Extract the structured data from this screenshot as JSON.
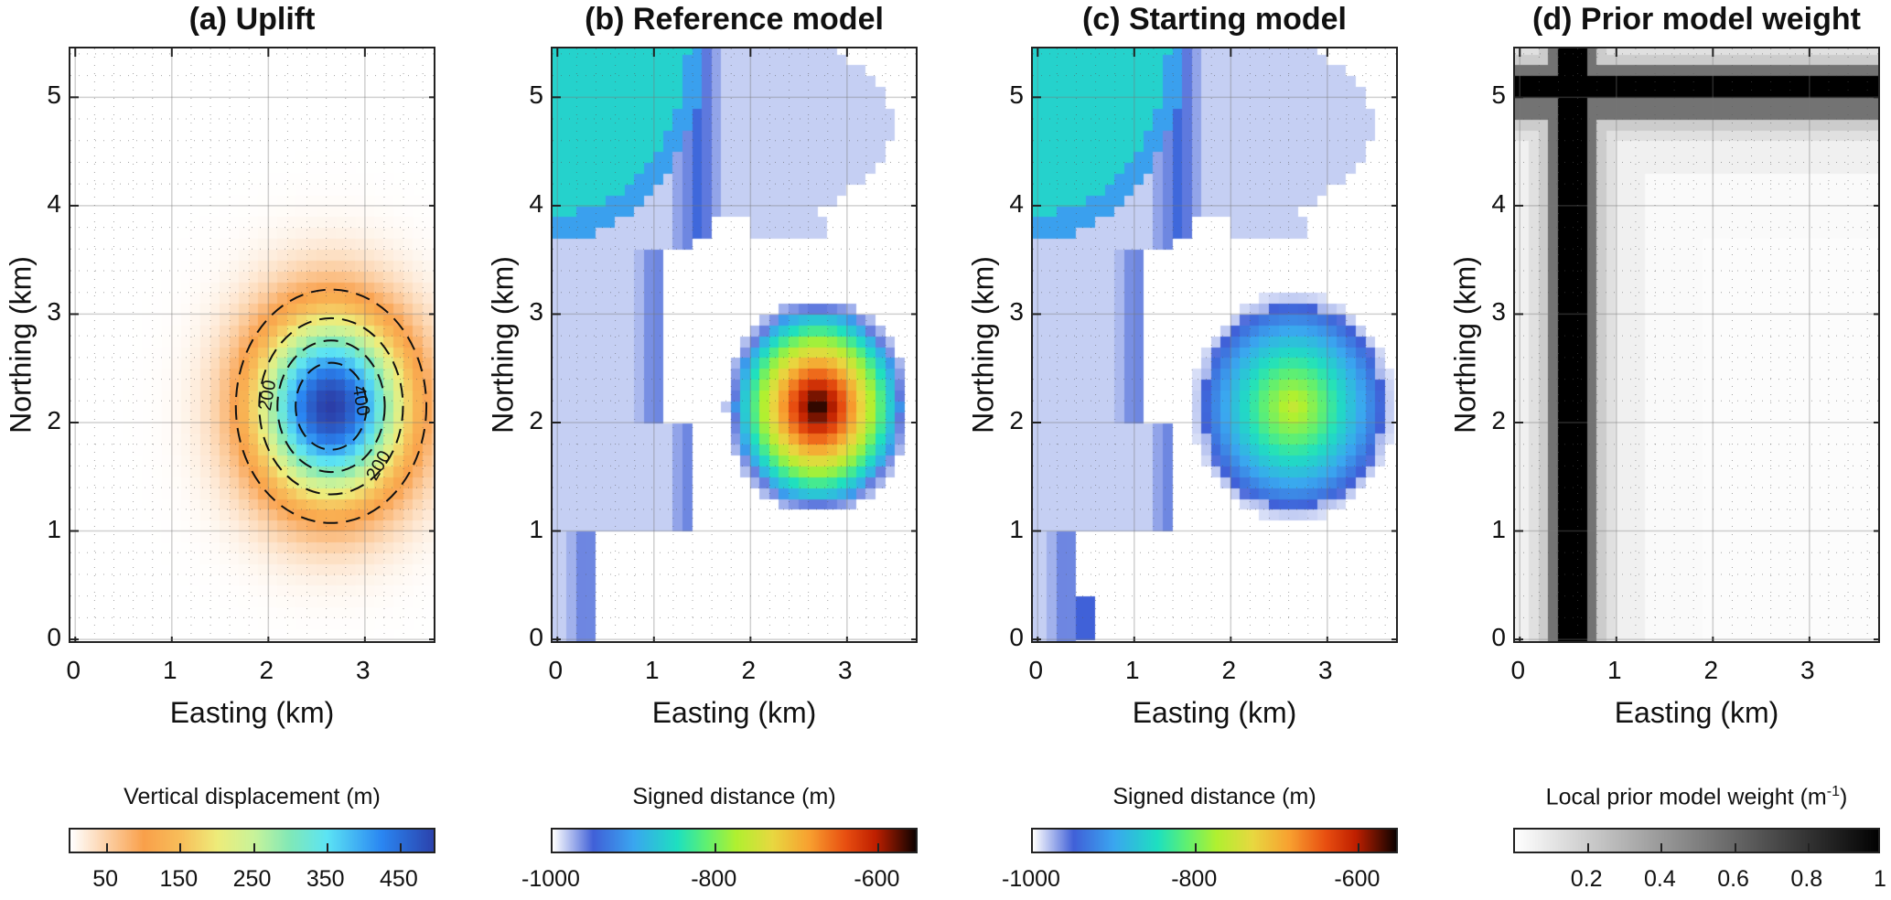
{
  "figure": {
    "shared_axes": {
      "xlabel": "Easting (km)",
      "ylabel": "Northing (km)",
      "xlim": [
        -0.05,
        3.75
      ],
      "ylim": [
        -0.05,
        5.45
      ],
      "xticks": [
        0,
        1,
        2,
        3
      ],
      "yticks": [
        0,
        1,
        2,
        3,
        4,
        5
      ],
      "grid": "major solid, minor dotted",
      "cell_size_km": 0.1
    }
  },
  "chart_data": [
    {
      "id": "a",
      "type": "heatmap",
      "title": "(a) Uplift",
      "xlabel": "Easting (km)",
      "ylabel": "Northing (km)",
      "field": {
        "kind": "gaussian",
        "center_km": [
          2.65,
          2.15
        ],
        "peak": 500,
        "sigma_km": [
          0.55,
          0.6
        ]
      },
      "contours": {
        "levels": [
          100,
          200,
          300,
          400
        ],
        "style": "dashed",
        "labels": [
          {
            "text": "200",
            "at_km": [
              2.0,
              2.25
            ],
            "angle": -80
          },
          {
            "text": "400",
            "at_km": [
              2.95,
              2.2
            ],
            "angle": 80
          },
          {
            "text": "200",
            "at_km": [
              3.15,
              1.6
            ],
            "angle": -60
          }
        ]
      },
      "colorbar": {
        "title": "Vertical displacement (m)",
        "range": [
          0,
          500
        ],
        "ticks": [
          50,
          150,
          250,
          350,
          450
        ],
        "tick_labels": [
          "50",
          "150",
          "250",
          "350",
          "450"
        ],
        "colormap": [
          [
            0.0,
            "#ffffff"
          ],
          [
            0.2,
            "#f9a04a"
          ],
          [
            0.3,
            "#f8be5a"
          ],
          [
            0.4,
            "#eeec7a"
          ],
          [
            0.5,
            "#c9f39a"
          ],
          [
            0.6,
            "#80e8b8"
          ],
          [
            0.7,
            "#5ce4f4"
          ],
          [
            0.85,
            "#2a86f2"
          ],
          [
            1.0,
            "#2b3ea8"
          ]
        ]
      }
    },
    {
      "id": "b",
      "type": "heatmap",
      "title": "(b) Reference model",
      "xlabel": "Easting (km)",
      "ylabel": "Northing (km)",
      "field": {
        "kind": "signed_distance",
        "background": -1000,
        "bodies": [
          {
            "shape": "channel",
            "value": -945
          },
          {
            "shape": "shallow-corner",
            "value": -860
          },
          {
            "shape": "sphere",
            "center_km": [
              2.7,
              2.15
            ],
            "radius_km": [
              0.95,
              1.0
            ],
            "peak": -550
          }
        ]
      },
      "colorbar": {
        "title": "Signed distance (m)",
        "range": [
          -1000,
          -550
        ],
        "ticks": [
          -1000,
          -800,
          -600
        ],
        "tick_labels": [
          "-1000",
          "-800",
          "-600"
        ],
        "colormap": [
          [
            0.0,
            "#ffffff"
          ],
          [
            0.11,
            "#4060d8"
          ],
          [
            0.22,
            "#3aa6f0"
          ],
          [
            0.34,
            "#1ee0c0"
          ],
          [
            0.42,
            "#60f070"
          ],
          [
            0.5,
            "#b0f030"
          ],
          [
            0.6,
            "#e8d840"
          ],
          [
            0.7,
            "#f8a030"
          ],
          [
            0.8,
            "#e84e10"
          ],
          [
            0.88,
            "#c02000"
          ],
          [
            1.0,
            "#000000"
          ]
        ]
      }
    },
    {
      "id": "c",
      "type": "heatmap",
      "title": "(c) Starting model",
      "xlabel": "Easting (km)",
      "ylabel": "Northing (km)",
      "field": {
        "kind": "signed_distance",
        "background": -1000,
        "bodies": [
          {
            "shape": "channel",
            "value": -945
          },
          {
            "shape": "shallow-corner",
            "value": -860
          },
          {
            "shape": "sphere",
            "center_km": [
              2.65,
              2.15
            ],
            "radius_km": [
              1.05,
              1.05
            ],
            "peak": -760
          },
          {
            "shape": "speck",
            "center_km": [
              0.5,
              0.2
            ],
            "value": -950
          }
        ]
      },
      "colorbar": {
        "title": "Signed distance (m)",
        "range": [
          -1000,
          -550
        ],
        "ticks": [
          -1000,
          -800,
          -600
        ],
        "tick_labels": [
          "-1000",
          "-800",
          "-600"
        ],
        "colormap": [
          [
            0.0,
            "#ffffff"
          ],
          [
            0.11,
            "#4060d8"
          ],
          [
            0.22,
            "#3aa6f0"
          ],
          [
            0.34,
            "#1ee0c0"
          ],
          [
            0.42,
            "#60f070"
          ],
          [
            0.5,
            "#b0f030"
          ],
          [
            0.6,
            "#e8d840"
          ],
          [
            0.7,
            "#f8a030"
          ],
          [
            0.8,
            "#e84e10"
          ],
          [
            0.88,
            "#c02000"
          ],
          [
            1.0,
            "#000000"
          ]
        ]
      }
    },
    {
      "id": "d",
      "type": "heatmap",
      "title": "(d) Prior model weight",
      "xlabel": "Easting (km)",
      "ylabel": "Northing (km)",
      "field": {
        "kind": "cross_bands",
        "vertical_band_km": [
          0.45,
          0.65
        ],
        "horizontal_band_km": [
          4.95,
          5.15
        ],
        "peak": 1.0,
        "falloff": [
          [
            0.1,
            0.55
          ],
          [
            0.2,
            0.2
          ],
          [
            0.3,
            0.12
          ],
          [
            0.6,
            0.06
          ],
          [
            1.2,
            0.02
          ]
        ]
      },
      "colorbar": {
        "title": "Local prior model weight (m",
        "title_sup": "-1",
        "title_end": ")",
        "range": [
          0,
          1
        ],
        "ticks": [
          0.2,
          0.4,
          0.6,
          0.8,
          1
        ],
        "tick_labels": [
          "0.2",
          "0.4",
          "0.6",
          "0.8",
          "1"
        ],
        "colormap": [
          [
            0.0,
            "#ffffff"
          ],
          [
            1.0,
            "#000000"
          ]
        ]
      }
    }
  ]
}
